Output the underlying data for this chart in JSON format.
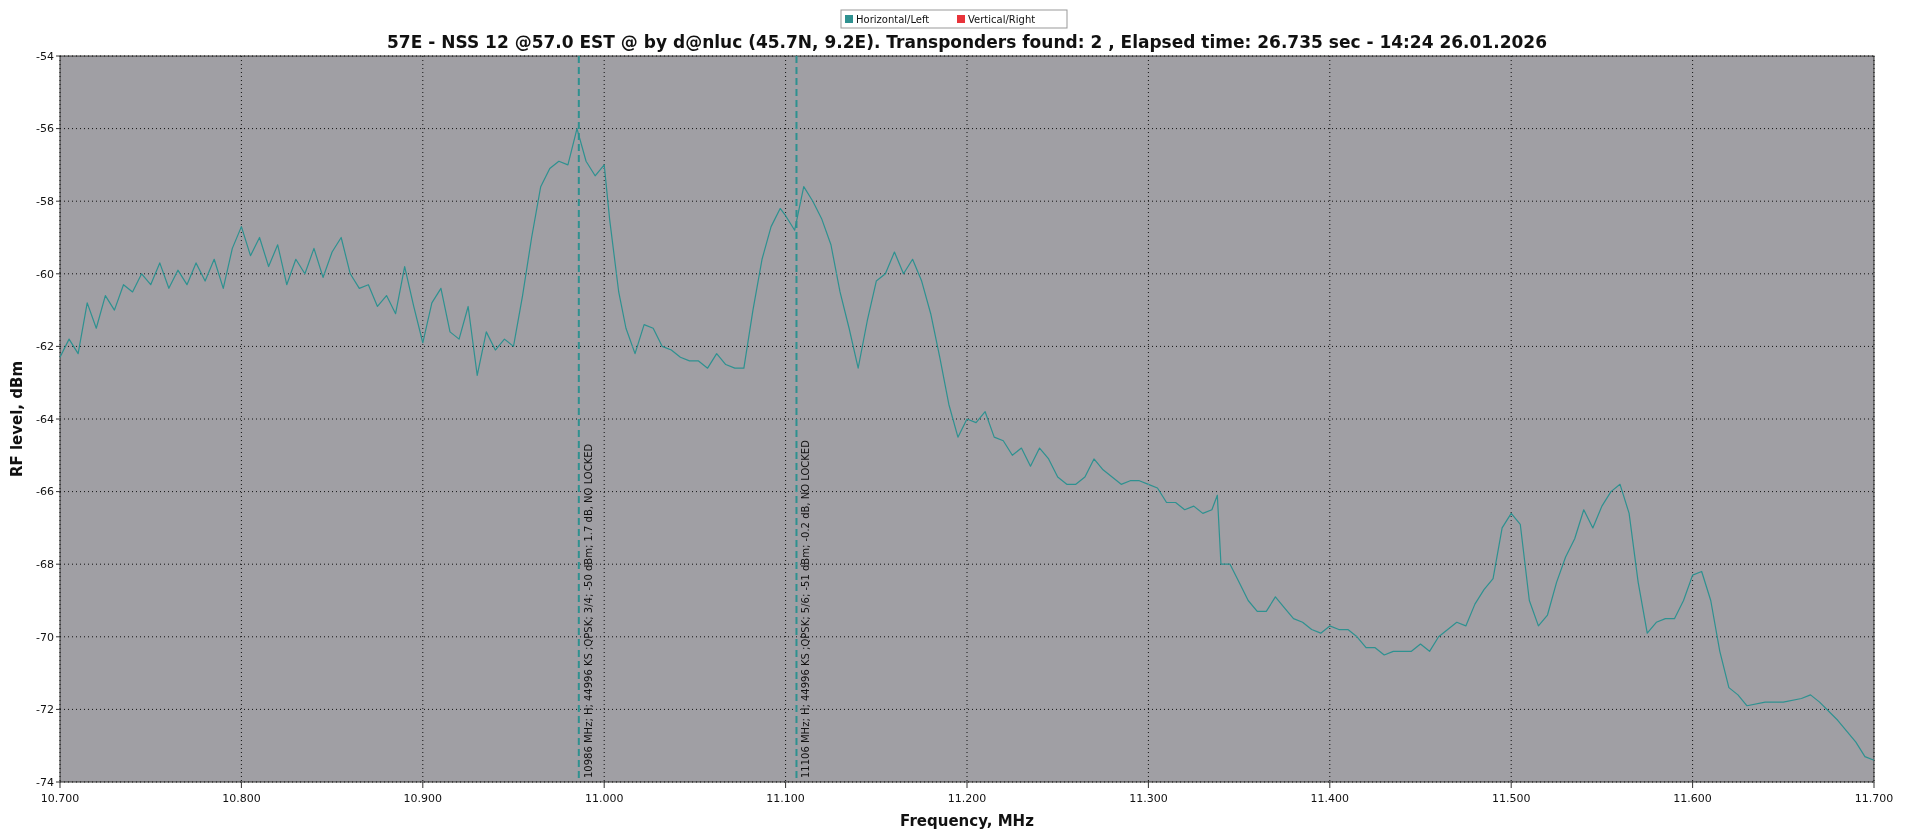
{
  "chart_data": {
    "type": "line",
    "title": "57E - NSS 12 @57.0 EST @ by d@nluc (45.7N, 9.2E). Transponders found: 2 , Elapsed time: 26.735 sec - 14:24 26.01.2026",
    "xlabel": "Frequency, MHz",
    "ylabel": "RF level, dBm",
    "x": [
      10.7,
      10.705,
      10.71,
      10.715,
      10.72,
      10.725,
      10.73,
      10.735,
      10.74,
      10.745,
      10.75,
      10.755,
      10.76,
      10.765,
      10.77,
      10.775,
      10.78,
      10.785,
      10.79,
      10.795,
      10.8,
      10.805,
      10.81,
      10.815,
      10.82,
      10.825,
      10.83,
      10.835,
      10.84,
      10.845,
      10.85,
      10.855,
      10.86,
      10.865,
      10.87,
      10.875,
      10.88,
      10.885,
      10.89,
      10.895,
      10.9,
      10.905,
      10.91,
      10.915,
      10.92,
      10.925,
      10.93,
      10.935,
      10.94,
      10.945,
      10.95,
      10.955,
      10.96,
      10.965,
      10.97,
      10.975,
      10.98,
      10.985,
      10.99,
      10.995,
      11.0,
      11.003,
      11.008,
      11.012,
      11.017,
      11.022,
      11.027,
      11.032,
      11.037,
      11.042,
      11.047,
      11.052,
      11.057,
      11.062,
      11.067,
      11.072,
      11.077,
      11.082,
      11.087,
      11.092,
      11.097,
      11.1,
      11.105,
      11.11,
      11.115,
      11.12,
      11.125,
      11.13,
      11.135,
      11.14,
      11.145,
      11.15,
      11.155,
      11.16,
      11.165,
      11.17,
      11.175,
      11.18,
      11.185,
      11.19,
      11.195,
      11.2,
      11.205,
      11.21,
      11.215,
      11.22,
      11.225,
      11.23,
      11.235,
      11.24,
      11.245,
      11.25,
      11.255,
      11.26,
      11.265,
      11.27,
      11.275,
      11.28,
      11.285,
      11.29,
      11.295,
      11.3,
      11.305,
      11.31,
      11.315,
      11.32,
      11.325,
      11.33,
      11.335,
      11.338,
      11.34,
      11.345,
      11.35,
      11.355,
      11.36,
      11.365,
      11.37,
      11.375,
      11.38,
      11.385,
      11.39,
      11.395,
      11.4,
      11.405,
      11.41,
      11.415,
      11.42,
      11.425,
      11.43,
      11.435,
      11.44,
      11.445,
      11.45,
      11.455,
      11.46,
      11.465,
      11.47,
      11.475,
      11.48,
      11.485,
      11.49,
      11.495,
      11.5,
      11.505,
      11.51,
      11.515,
      11.52,
      11.525,
      11.53,
      11.535,
      11.54,
      11.545,
      11.55,
      11.555,
      11.56,
      11.565,
      11.57,
      11.575,
      11.58,
      11.585,
      11.59,
      11.595,
      11.6,
      11.605,
      11.61,
      11.615,
      11.62,
      11.625,
      11.63,
      11.64,
      11.65,
      11.66,
      11.665,
      11.67,
      11.68,
      11.69,
      11.695,
      11.7
    ],
    "series": [
      {
        "name": "Horizontal/Left",
        "color": "#2e9190",
        "values": [
          -62.3,
          -61.8,
          -62.2,
          -60.8,
          -61.5,
          -60.6,
          -61.0,
          -60.3,
          -60.5,
          -60.0,
          -60.3,
          -59.7,
          -60.4,
          -59.9,
          -60.3,
          -59.7,
          -60.2,
          -59.6,
          -60.4,
          -59.3,
          -58.7,
          -59.5,
          -59.0,
          -59.8,
          -59.2,
          -60.3,
          -59.6,
          -60.0,
          -59.3,
          -60.1,
          -59.4,
          -59.0,
          -60.0,
          -60.4,
          -60.3,
          -60.9,
          -60.6,
          -61.1,
          -59.8,
          -60.9,
          -61.9,
          -60.8,
          -60.4,
          -61.6,
          -61.8,
          -60.9,
          -62.8,
          -61.6,
          -62.1,
          -61.8,
          -62.0,
          -60.6,
          -59.0,
          -57.6,
          -57.1,
          -56.9,
          -57.0,
          -56.0,
          -56.9,
          -57.3,
          -57.0,
          -58.5,
          -60.5,
          -61.5,
          -62.2,
          -61.4,
          -61.5,
          -62.0,
          -62.1,
          -62.3,
          -62.4,
          -62.4,
          -62.6,
          -62.2,
          -62.5,
          -62.6,
          -62.6,
          -61.0,
          -59.6,
          -58.7,
          -58.2,
          -58.4,
          -58.8,
          -57.6,
          -58.0,
          -58.5,
          -59.2,
          -60.5,
          -61.5,
          -62.6,
          -61.3,
          -60.2,
          -60.0,
          -59.4,
          -60.0,
          -59.6,
          -60.2,
          -61.1,
          -62.3,
          -63.6,
          -64.5,
          -64.0,
          -64.1,
          -63.8,
          -64.5,
          -64.6,
          -65.0,
          -64.8,
          -65.3,
          -64.8,
          -65.1,
          -65.6,
          -65.8,
          -65.8,
          -65.6,
          -65.1,
          -65.4,
          -65.6,
          -65.8,
          -65.7,
          -65.7,
          -65.8,
          -65.9,
          -66.3,
          -66.3,
          -66.5,
          -66.4,
          -66.6,
          -66.5,
          -66.1,
          -68.0,
          -68.0,
          -68.5,
          -69.0,
          -69.3,
          -69.3,
          -68.9,
          -69.2,
          -69.5,
          -69.6,
          -69.8,
          -69.9,
          -69.7,
          -69.8,
          -69.8,
          -70.0,
          -70.3,
          -70.3,
          -70.5,
          -70.4,
          -70.4,
          -70.4,
          -70.2,
          -70.4,
          -70.0,
          -69.8,
          -69.6,
          -69.7,
          -69.1,
          -68.7,
          -68.4,
          -67.0,
          -66.6,
          -66.9,
          -69.0,
          -69.7,
          -69.4,
          -68.5,
          -67.8,
          -67.3,
          -66.5,
          -67.0,
          -66.4,
          -66.0,
          -65.8,
          -66.6,
          -68.5,
          -69.9,
          -69.6,
          -69.5,
          -69.5,
          -69.0,
          -68.3,
          -68.2,
          -69.0,
          -70.4,
          -71.4,
          -71.6,
          -71.9,
          -71.8,
          -71.8,
          -71.7,
          -71.6,
          -71.8,
          -72.3,
          -72.9,
          -73.3,
          -73.4
        ]
      },
      {
        "name": "Vertical/Right",
        "color": "#e8333a",
        "values": [
          null,
          null,
          null,
          null,
          null,
          null,
          null,
          null,
          null,
          null,
          null,
          null,
          null,
          null,
          null,
          null,
          null,
          null,
          null,
          null,
          null,
          null,
          null,
          null,
          null,
          null,
          null,
          null,
          null,
          null,
          null,
          null,
          null,
          null,
          null,
          null,
          null,
          null,
          null,
          null,
          null,
          null,
          null,
          null,
          null,
          null,
          null,
          null,
          null,
          null,
          null,
          null,
          null,
          null,
          null,
          null,
          null,
          null,
          null,
          null,
          null,
          null,
          null,
          null,
          null,
          null,
          null,
          null,
          null,
          null,
          null,
          null,
          null,
          null,
          null,
          null,
          null,
          null,
          null,
          null,
          null,
          null,
          null,
          null,
          null,
          null,
          null,
          null,
          null,
          null,
          null,
          null,
          null,
          null,
          null,
          null,
          null,
          null,
          null,
          null,
          null,
          null,
          null,
          null,
          null,
          null,
          null,
          null,
          null,
          null,
          null,
          null,
          null,
          null,
          null,
          null,
          null,
          null,
          null,
          null,
          null,
          null,
          null,
          null,
          null,
          null,
          null,
          null,
          null,
          null,
          null,
          null,
          null,
          null,
          null,
          null,
          null,
          null,
          null,
          null,
          null,
          null,
          null,
          null,
          null,
          null,
          null,
          null,
          null,
          null,
          null,
          null,
          null,
          null,
          null,
          null,
          null,
          null,
          null,
          null,
          null,
          null,
          null,
          null,
          null,
          null,
          null,
          null,
          null,
          null,
          null,
          null,
          null,
          null,
          null,
          null,
          null,
          null,
          null,
          null,
          null,
          null,
          null,
          null,
          null,
          null,
          null,
          null,
          null,
          null,
          null,
          null,
          null,
          null,
          null,
          null,
          null,
          null
        ]
      }
    ],
    "xlim": [
      10.7,
      11.7
    ],
    "xticks": [
      {
        "value": 10.7,
        "label": "10.700"
      },
      {
        "value": 10.8,
        "label": "10.800"
      },
      {
        "value": 10.9,
        "label": "10.900"
      },
      {
        "value": 11.0,
        "label": "11.000"
      },
      {
        "value": 11.1,
        "label": "11.100"
      },
      {
        "value": 11.2,
        "label": "11.200"
      },
      {
        "value": 11.3,
        "label": "11.300"
      },
      {
        "value": 11.4,
        "label": "11.400"
      },
      {
        "value": 11.5,
        "label": "11.500"
      },
      {
        "value": 11.6,
        "label": "11.600"
      },
      {
        "value": 11.7,
        "label": "11.700"
      }
    ],
    "ylim": [
      -74,
      -54
    ],
    "yticks": [
      -74,
      -72,
      -70,
      -68,
      -66,
      -64,
      -62,
      -60,
      -58,
      -56,
      -54
    ],
    "ref_lines": [
      {
        "axis": "x",
        "value": 10.986,
        "label": "10986 MHz; H; 44996 KS ;QPSK; 3/4; -50 dBm; 1.7 dB, NO LOCKED",
        "color": "#2e9190",
        "line_style": "dashed"
      },
      {
        "axis": "x",
        "value": 11.106,
        "label": "11106 MHz; H; 44996 KS ;QPSK; 5/6; -51 dBm; -0.2 dB, NO LOCKED",
        "color": "#2e9190",
        "line_style": "dashed"
      }
    ],
    "grid": true,
    "legend": "top",
    "line_style": "solid",
    "marker": "none"
  }
}
